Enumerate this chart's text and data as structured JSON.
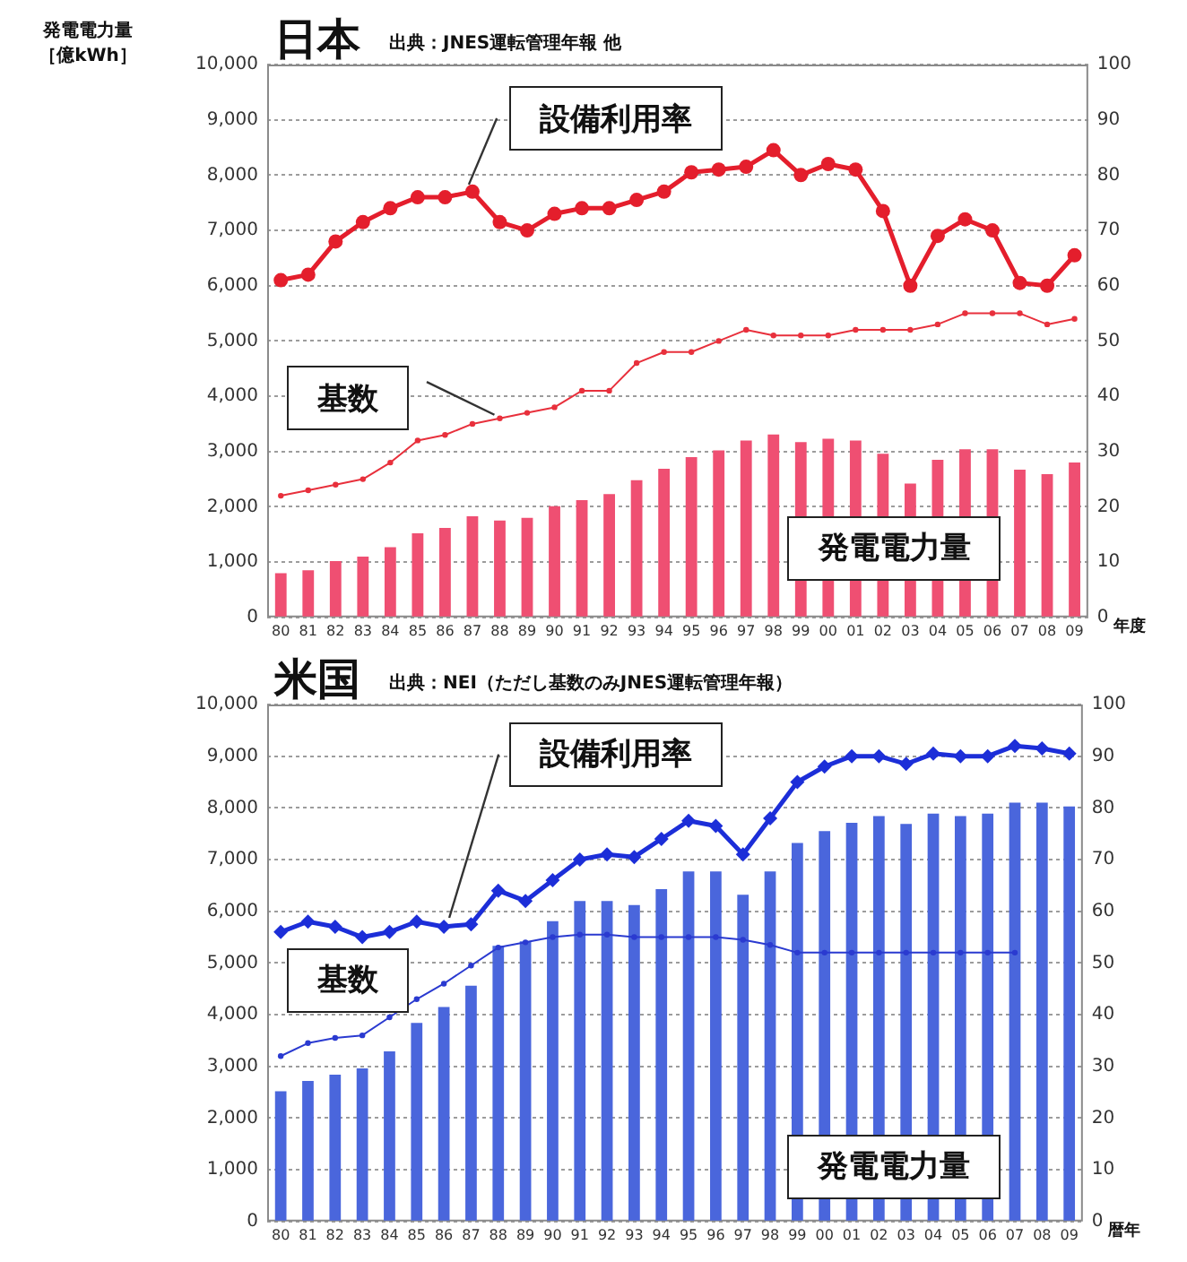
{
  "chart_data": [
    {
      "type": "bar",
      "title": "日本",
      "annotations": [
        "出典：JNES運転管理年報 他"
      ],
      "ylabel": "発電電力量［億kWh］",
      "xlabel": "年度",
      "categories": [
        "80",
        "81",
        "82",
        "83",
        "84",
        "85",
        "86",
        "87",
        "88",
        "89",
        "90",
        "91",
        "92",
        "93",
        "94",
        "95",
        "96",
        "97",
        "98",
        "99",
        "00",
        "01",
        "02",
        "03",
        "04",
        "05",
        "06",
        "07",
        "08",
        "09"
      ],
      "series": [
        {
          "name": "発電電力量",
          "type": "bar",
          "color": "#ef4f72",
          "values": [
            800,
            850,
            1020,
            1100,
            1270,
            1520,
            1620,
            1830,
            1750,
            1800,
            2010,
            2120,
            2230,
            2480,
            2690,
            2900,
            3020,
            3200,
            3310,
            3170,
            3230,
            3200,
            2960,
            2420,
            2850,
            3040,
            3040,
            2670,
            2590,
            2800
          ]
        },
        {
          "name": "設備利用率",
          "type": "line",
          "axis": "y2",
          "color": "#e41e2c",
          "marker": "circle",
          "values": [
            61,
            62,
            68,
            71.5,
            74,
            76,
            76,
            77,
            71.5,
            70,
            73,
            74,
            74,
            75.5,
            77,
            80.5,
            81,
            81.5,
            84.5,
            80,
            82,
            81,
            73.5,
            60,
            69,
            72,
            70,
            60.5,
            60,
            65.5
          ]
        },
        {
          "name": "基数",
          "type": "line",
          "axis": "y2",
          "color": "#e8303c",
          "marker": "circle",
          "values": [
            22,
            23,
            24,
            25,
            28,
            32,
            33,
            35,
            36,
            37,
            38,
            41,
            41,
            46,
            48,
            48,
            50,
            52,
            51,
            51,
            51,
            52,
            52,
            52,
            53,
            55,
            55,
            55,
            53,
            54
          ]
        }
      ],
      "ylim": [
        0,
        10000
      ],
      "yticks": [
        0,
        {
          "value": 1000,
          "label": "1,000"
        },
        {
          "value": 2000,
          "label": "2,000"
        },
        {
          "value": 3000,
          "label": "3,000"
        },
        {
          "value": 4000,
          "label": "4,000"
        },
        {
          "value": 5000,
          "label": "5,000"
        },
        {
          "value": 6000,
          "label": "6,000"
        },
        {
          "value": 7000,
          "label": "7,000"
        },
        {
          "value": 8000,
          "label": "8,000"
        },
        {
          "value": 9000,
          "label": "9,000"
        },
        {
          "value": 10000,
          "label": "10,000"
        }
      ],
      "y2lim": [
        0,
        100
      ],
      "y2ticks": [
        0,
        10,
        20,
        30,
        40,
        50,
        60,
        70,
        80,
        90,
        100
      ],
      "grid": "y"
    },
    {
      "type": "bar",
      "title": "米国",
      "annotations": [
        "出典：NEI（ただし基数のみJNES運転管理年報）"
      ],
      "xlabel": "暦年",
      "categories": [
        "80",
        "81",
        "82",
        "83",
        "84",
        "85",
        "86",
        "87",
        "88",
        "89",
        "90",
        "91",
        "92",
        "93",
        "94",
        "95",
        "96",
        "97",
        "98",
        "99",
        "00",
        "01",
        "02",
        "03",
        "04",
        "05",
        "06",
        "07",
        "08",
        "09"
      ],
      "series": [
        {
          "name": "発電電力量",
          "type": "bar",
          "color": "#4a66dc",
          "values": [
            2520,
            2720,
            2840,
            2960,
            3290,
            3840,
            4150,
            4560,
            5330,
            5420,
            5810,
            6200,
            6200,
            6120,
            6430,
            6770,
            6770,
            6320,
            6770,
            7320,
            7550,
            7710,
            7840,
            7690,
            7890,
            7840,
            7890,
            8100,
            8100,
            8030
          ]
        },
        {
          "name": "設備利用率",
          "type": "line",
          "axis": "y2",
          "color": "#1c2ed8",
          "marker": "diamond",
          "values": [
            56,
            58,
            57,
            55,
            56,
            58,
            57,
            57.5,
            64,
            62,
            66,
            70,
            71,
            70.5,
            74,
            77.5,
            76.5,
            71,
            78,
            85,
            88,
            90,
            90,
            88.5,
            90.5,
            90,
            90,
            92,
            91.5,
            90.5
          ]
        },
        {
          "name": "基数",
          "type": "line",
          "axis": "y2",
          "color": "#2a3ad0",
          "marker": "circle",
          "values": [
            32,
            34.5,
            35.5,
            36,
            39.5,
            43,
            46,
            49.5,
            53,
            54,
            55,
            55.5,
            55.5,
            55,
            55,
            55,
            55,
            54.5,
            53.5,
            52,
            52,
            52,
            52,
            52,
            52,
            52,
            52,
            52,
            null,
            null
          ]
        }
      ],
      "ylim": [
        0,
        10000
      ],
      "yticks": [
        0,
        {
          "value": 1000,
          "label": "1,000"
        },
        {
          "value": 2000,
          "label": "2,000"
        },
        {
          "value": 3000,
          "label": "3,000"
        },
        {
          "value": 4000,
          "label": "4,000"
        },
        {
          "value": 5000,
          "label": "5,000"
        },
        {
          "value": 6000,
          "label": "6,000"
        },
        {
          "value": 7000,
          "label": "7,000"
        },
        {
          "value": 8000,
          "label": "8,000"
        },
        {
          "value": 9000,
          "label": "9,000"
        },
        {
          "value": 10000,
          "label": "10,000"
        }
      ],
      "y2lim": [
        0,
        100
      ],
      "y2ticks": [
        0,
        10,
        20,
        30,
        40,
        50,
        60,
        70,
        80,
        90,
        100
      ],
      "grid": "y"
    }
  ]
}
